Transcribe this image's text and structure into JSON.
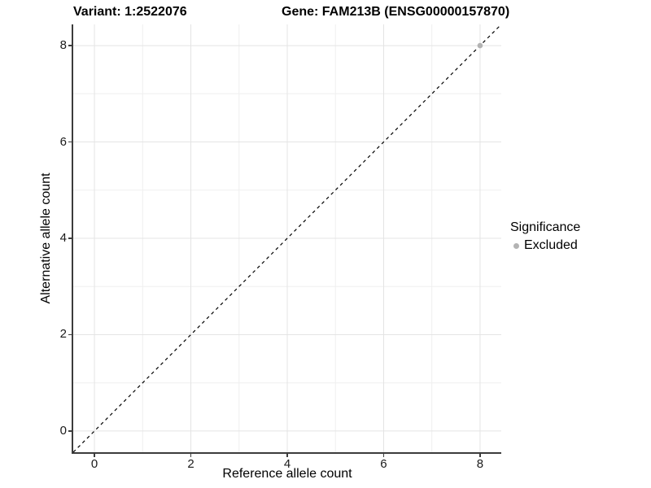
{
  "figure": {
    "title_variant": "Variant: 1:2522076",
    "title_gene": "Gene: FAM213B (ENSG00000157870)"
  },
  "axes": {
    "x": {
      "label": "Reference allele count",
      "tick_labels": [
        "0",
        "2",
        "4",
        "6",
        "8"
      ]
    },
    "y": {
      "label": "Alternative allele count",
      "tick_labels": [
        "0",
        "2",
        "4",
        "6",
        "8"
      ]
    }
  },
  "legend": {
    "title": "Significance",
    "items": [
      {
        "label": "Excluded",
        "color": "#b3b3b3"
      }
    ]
  },
  "colors": {
    "background": "#ffffff",
    "grid_major": "#e4e4e4",
    "grid_minor": "#efefef",
    "axis_line": "#3c3c3c",
    "tick_text": "#1a1a1a",
    "title_text": "#000000",
    "reference_line": "#000000",
    "point": "#b3b3b3"
  },
  "chart_data": {
    "type": "scatter",
    "title": "Variant: 1:2522076 | Gene: FAM213B (ENSG00000157870)",
    "xlabel": "Reference allele count",
    "ylabel": "Alternative allele count",
    "xlim": [
      -0.44,
      8.44
    ],
    "ylim": [
      -0.44,
      8.44
    ],
    "x_ticks": [
      0,
      2,
      4,
      6,
      8
    ],
    "y_ticks": [
      0,
      2,
      4,
      6,
      8
    ],
    "x_minor_ticks": [
      1,
      3,
      5,
      7
    ],
    "y_minor_ticks": [
      1,
      3,
      5,
      7
    ],
    "grid": true,
    "legend_position": "right",
    "legend_title": "Significance",
    "series": [
      {
        "name": "Excluded",
        "color": "#b3b3b3",
        "points": [
          [
            8,
            8
          ]
        ]
      }
    ],
    "reference_line": {
      "type": "identity",
      "equation": "y = x",
      "style": "dashed",
      "color": "#000000"
    }
  }
}
